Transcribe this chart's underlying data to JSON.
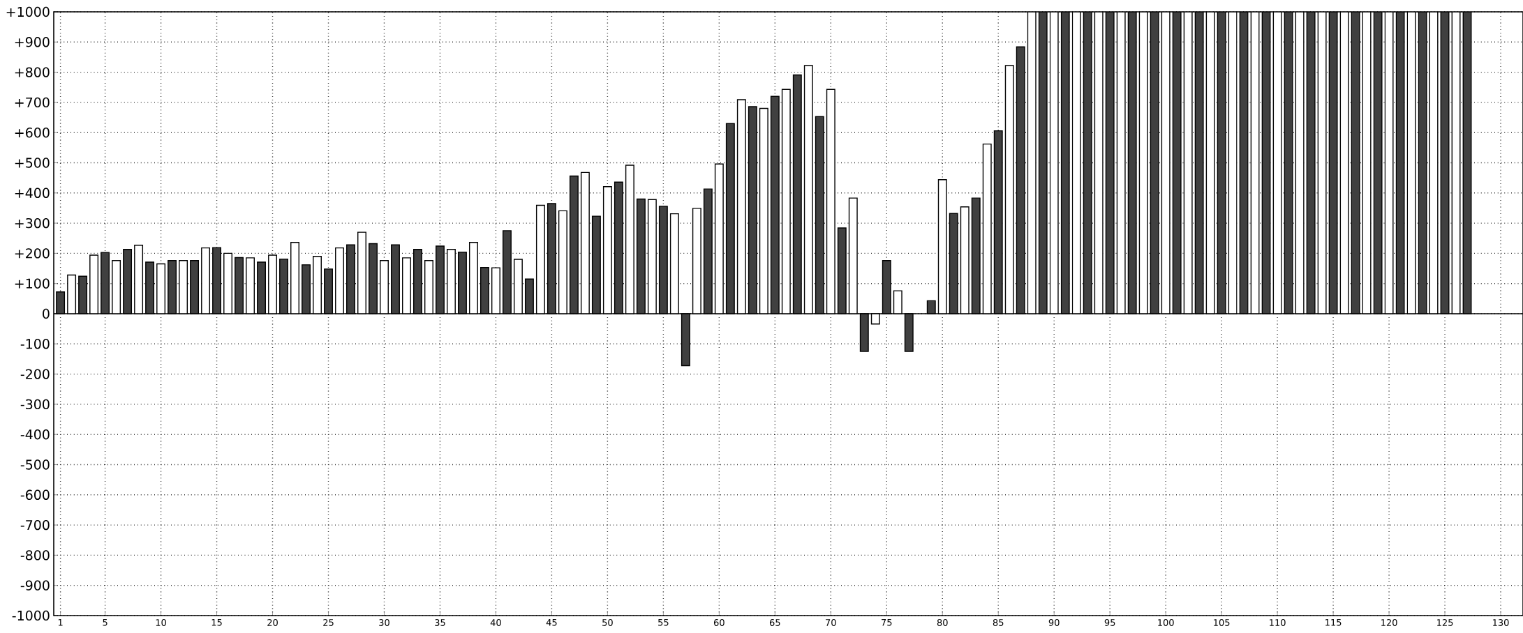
{
  "chart_data": {
    "type": "bar",
    "x": [
      1,
      2,
      3,
      4,
      5,
      6,
      7,
      8,
      9,
      10,
      11,
      12,
      13,
      14,
      15,
      16,
      17,
      18,
      19,
      20,
      21,
      22,
      23,
      24,
      25,
      26,
      27,
      28,
      29,
      30,
      31,
      32,
      33,
      34,
      35,
      36,
      37,
      38,
      39,
      40,
      41,
      42,
      43,
      44,
      45,
      46,
      47,
      48,
      49,
      50,
      51,
      52,
      53,
      54,
      55,
      56,
      57,
      58,
      59,
      60,
      61,
      62,
      63,
      64,
      65,
      66,
      67,
      68,
      69,
      70,
      71,
      72,
      73,
      74,
      75,
      76,
      77,
      78,
      79,
      80,
      81,
      82,
      83,
      84,
      85,
      86,
      87,
      88,
      89,
      90,
      91,
      92,
      93,
      94,
      95,
      96,
      97,
      98,
      99,
      100,
      101,
      102,
      103,
      104,
      105,
      106,
      107,
      108,
      109,
      110,
      111,
      112,
      113,
      114,
      115,
      116,
      117,
      118,
      119,
      120,
      121,
      122,
      123,
      124,
      125,
      126,
      127
    ],
    "values": [
      72,
      128,
      124,
      194,
      203,
      176,
      213,
      227,
      171,
      165,
      176,
      176,
      176,
      218,
      219,
      200,
      186,
      185,
      171,
      194,
      181,
      236,
      162,
      190,
      148,
      218,
      228,
      270,
      232,
      176,
      228,
      185,
      213,
      176,
      224,
      213,
      204,
      236,
      153,
      152,
      275,
      180,
      115,
      359,
      365,
      341,
      456,
      468,
      323,
      421,
      436,
      492,
      380,
      378,
      356,
      331,
      -172,
      349,
      413,
      496,
      630,
      709,
      686,
      680,
      720,
      743,
      791,
      822,
      653,
      743,
      284,
      383,
      -125,
      -34,
      176,
      76,
      -125,
      null,
      43,
      444,
      332,
      354,
      383,
      562,
      606,
      822,
      884,
      1000,
      1000,
      1000,
      1000,
      1000,
      1000,
      1000,
      1000,
      1000,
      1000,
      1000,
      1000,
      1000,
      1000,
      1000,
      1000,
      1000,
      1000,
      1000,
      1000,
      1000,
      1000,
      1000,
      1000,
      1000,
      1000,
      1000,
      1000,
      1000,
      1000,
      1000,
      1000,
      1000,
      1000,
      1000,
      1000,
      1000,
      1000,
      1000,
      1000
    ],
    "colors": [
      "#404040",
      "#ffffff",
      "#404040",
      "#ffffff",
      "#404040",
      "#ffffff",
      "#404040",
      "#ffffff",
      "#404040",
      "#ffffff",
      "#404040",
      "#ffffff",
      "#404040",
      "#ffffff",
      "#404040",
      "#ffffff",
      "#404040",
      "#ffffff",
      "#404040",
      "#ffffff",
      "#404040",
      "#ffffff",
      "#404040",
      "#ffffff",
      "#404040",
      "#ffffff",
      "#404040",
      "#ffffff",
      "#404040",
      "#ffffff",
      "#404040",
      "#ffffff",
      "#404040",
      "#ffffff",
      "#404040",
      "#ffffff",
      "#404040",
      "#ffffff",
      "#404040",
      "#ffffff",
      "#404040",
      "#ffffff",
      "#404040",
      "#ffffff",
      "#404040",
      "#ffffff",
      "#404040",
      "#ffffff",
      "#404040",
      "#ffffff",
      "#404040",
      "#ffffff",
      "#404040",
      "#ffffff",
      "#404040",
      "#ffffff",
      "#404040",
      "#ffffff",
      "#404040",
      "#ffffff",
      "#404040",
      "#ffffff",
      "#404040",
      "#ffffff",
      "#404040",
      "#ffffff",
      "#404040",
      "#ffffff",
      "#404040",
      "#ffffff",
      "#404040",
      "#ffffff",
      "#404040",
      "#ffffff",
      "#404040",
      "#ffffff",
      "#404040",
      "#ffffff",
      "#404040",
      "#ffffff",
      "#404040",
      "#ffffff",
      "#404040",
      "#ffffff",
      "#404040",
      "#ffffff",
      "#404040",
      "#ffffff",
      "#404040",
      "#ffffff",
      "#404040",
      "#ffffff",
      "#404040",
      "#ffffff",
      "#404040",
      "#ffffff",
      "#404040",
      "#ffffff",
      "#404040",
      "#ffffff",
      "#404040",
      "#ffffff",
      "#404040",
      "#ffffff",
      "#404040",
      "#ffffff",
      "#404040",
      "#ffffff",
      "#404040",
      "#ffffff",
      "#404040",
      "#ffffff",
      "#404040",
      "#ffffff",
      "#404040",
      "#ffffff",
      "#404040",
      "#ffffff",
      "#404040",
      "#ffffff",
      "#404040",
      "#ffffff",
      "#404040",
      "#ffffff",
      "#404040",
      "#ffffff",
      "#404040"
    ],
    "xlim": [
      0.4,
      132
    ],
    "xticks": [
      1,
      5,
      10,
      15,
      20,
      25,
      30,
      35,
      40,
      45,
      50,
      55,
      60,
      65,
      70,
      75,
      80,
      85,
      90,
      95,
      100,
      105,
      110,
      115,
      120,
      125,
      130
    ],
    "ylim": [
      -1000,
      1000
    ],
    "yticks": [
      {
        "value": 1000,
        "label": "+1000"
      },
      {
        "value": 900,
        "label": "+900"
      },
      {
        "value": 800,
        "label": "+800"
      },
      {
        "value": 700,
        "label": "+700"
      },
      {
        "value": 600,
        "label": "+600"
      },
      {
        "value": 500,
        "label": "+500"
      },
      {
        "value": 400,
        "label": "+400"
      },
      {
        "value": 300,
        "label": "+300"
      },
      {
        "value": 200,
        "label": "+200"
      },
      {
        "value": 100,
        "label": "+100"
      },
      0,
      -100,
      -200,
      -300,
      -400,
      -500,
      -600,
      -700,
      -800,
      -900,
      -1000
    ],
    "grid": true
  }
}
